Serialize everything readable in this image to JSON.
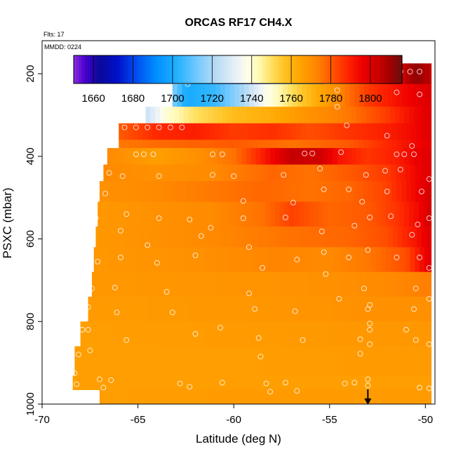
{
  "chart_data": {
    "type": "heatmap",
    "title": "ORCAS RF17 CH4.X",
    "flts_label": "Flts: 17",
    "mmdd_label": "MMDD: 0224",
    "xlabel": "Latitude (deg N)",
    "ylabel": "PSXC (mbar)",
    "xlim": [
      -70,
      -49.5
    ],
    "ylim": [
      1000,
      120
    ],
    "x_ticks": [
      -70,
      -65,
      -60,
      -55,
      -50
    ],
    "x_tick_labels": [
      "-70",
      "-65",
      "-60",
      "-55",
      "-50"
    ],
    "y_ticks": [
      200,
      400,
      600,
      800,
      1000
    ],
    "y_tick_labels": [
      "200",
      "400",
      "600",
      "800",
      "1000"
    ],
    "colorbar": {
      "range": [
        1650,
        1816
      ],
      "ticks": [
        1660,
        1680,
        1700,
        1720,
        1740,
        1760,
        1780,
        1800
      ],
      "tick_labels": [
        "1660",
        "1680",
        "1700",
        "1720",
        "1740",
        "1760",
        "1780",
        "1800"
      ]
    },
    "marker_latitude": -53,
    "bands": [
      {
        "p": [
          175,
          225
        ],
        "lon": -62.3,
        "lat": -49.7,
        "stops": [
          [
            -62.3,
            1700
          ],
          [
            -60.5,
            1680
          ],
          [
            -59.3,
            1660
          ],
          [
            -58.5,
            1680
          ],
          [
            -57.0,
            1690
          ],
          [
            -55.5,
            1700
          ],
          [
            -55.0,
            1745
          ],
          [
            -53.5,
            1770
          ],
          [
            -52.5,
            1790
          ],
          [
            -51.5,
            1800
          ],
          [
            -50.5,
            1812
          ],
          [
            -49.7,
            1805
          ]
        ]
      },
      {
        "p": [
          225,
          280
        ],
        "lon": -63.2,
        "lat": -49.7,
        "stops": [
          [
            -63.2,
            1715
          ],
          [
            -62.5,
            1700
          ],
          [
            -61.0,
            1705
          ],
          [
            -59.5,
            1720
          ],
          [
            -58.5,
            1735
          ],
          [
            -57.5,
            1745
          ],
          [
            -56.5,
            1755
          ],
          [
            -55.0,
            1768
          ],
          [
            -53.0,
            1785
          ],
          [
            -51.0,
            1795
          ],
          [
            -49.7,
            1800
          ]
        ]
      },
      {
        "p": [
          280,
          320
        ],
        "lon": -64.6,
        "lat": -49.7,
        "stops": [
          [
            -64.6,
            1725
          ],
          [
            -63.5,
            1740
          ],
          [
            -62.0,
            1750
          ],
          [
            -60.0,
            1758
          ],
          [
            -58.0,
            1762
          ],
          [
            -56.0,
            1770
          ],
          [
            -54.0,
            1775
          ],
          [
            -52.0,
            1785
          ],
          [
            -50.5,
            1795
          ],
          [
            -49.7,
            1800
          ]
        ]
      },
      {
        "p": [
          320,
          360
        ],
        "lon": -66.0,
        "lat": -49.7,
        "stops": [
          [
            -66.0,
            1780
          ],
          [
            -64.0,
            1788
          ],
          [
            -62.0,
            1790
          ],
          [
            -60.0,
            1785
          ],
          [
            -58.0,
            1787
          ],
          [
            -56.0,
            1782
          ],
          [
            -54.0,
            1786
          ],
          [
            -52.0,
            1790
          ],
          [
            -50.5,
            1795
          ],
          [
            -49.7,
            1800
          ]
        ]
      },
      {
        "p": [
          360,
          380
        ],
        "lon": -66.0,
        "lat": -49.7,
        "stops": [
          [
            -66.0,
            1775
          ],
          [
            -63.0,
            1778
          ],
          [
            -60.0,
            1780
          ],
          [
            -57.0,
            1776
          ],
          [
            -54.0,
            1780
          ],
          [
            -52.0,
            1788
          ],
          [
            -49.7,
            1798
          ]
        ]
      },
      {
        "p": [
          380,
          420
        ],
        "lon": -66.6,
        "lat": -49.7,
        "stops": [
          [
            -66.6,
            1772
          ],
          [
            -64.0,
            1766
          ],
          [
            -62.0,
            1770
          ],
          [
            -60.0,
            1776
          ],
          [
            -59.0,
            1785
          ],
          [
            -58.0,
            1795
          ],
          [
            -57.0,
            1805
          ],
          [
            -55.5,
            1803
          ],
          [
            -54.5,
            1792
          ],
          [
            -53.0,
            1786
          ],
          [
            -51.5,
            1790
          ],
          [
            -50.5,
            1796
          ],
          [
            -49.7,
            1800
          ]
        ]
      },
      {
        "p": [
          420,
          460
        ],
        "lon": -66.8,
        "lat": -49.7,
        "stops": [
          [
            -66.8,
            1772
          ],
          [
            -64.0,
            1770
          ],
          [
            -61.0,
            1772
          ],
          [
            -58.0,
            1778
          ],
          [
            -56.0,
            1776
          ],
          [
            -54.0,
            1780
          ],
          [
            -52.0,
            1785
          ],
          [
            -50.5,
            1795
          ],
          [
            -49.7,
            1800
          ]
        ]
      },
      {
        "p": [
          460,
          510
        ],
        "lon": -67.0,
        "lat": -49.7,
        "stops": [
          [
            -67.0,
            1770
          ],
          [
            -64.0,
            1772
          ],
          [
            -61.0,
            1775
          ],
          [
            -58.5,
            1778
          ],
          [
            -56.0,
            1776
          ],
          [
            -54.0,
            1778
          ],
          [
            -52.0,
            1784
          ],
          [
            -50.5,
            1795
          ],
          [
            -49.7,
            1802
          ]
        ]
      },
      {
        "p": [
          510,
          570
        ],
        "lon": -67.1,
        "lat": -49.7,
        "stops": [
          [
            -67.1,
            1768
          ],
          [
            -64.0,
            1770
          ],
          [
            -61.0,
            1772
          ],
          [
            -58.5,
            1776
          ],
          [
            -57.0,
            1784
          ],
          [
            -55.0,
            1778
          ],
          [
            -53.0,
            1780
          ],
          [
            -51.5,
            1786
          ],
          [
            -50.3,
            1795
          ],
          [
            -49.7,
            1803
          ]
        ]
      },
      {
        "p": [
          570,
          620
        ],
        "lon": -67.2,
        "lat": -49.7,
        "stops": [
          [
            -67.2,
            1768
          ],
          [
            -64.0,
            1770
          ],
          [
            -60.0,
            1773
          ],
          [
            -57.0,
            1776
          ],
          [
            -54.0,
            1778
          ],
          [
            -52.0,
            1782
          ],
          [
            -50.5,
            1792
          ],
          [
            -49.7,
            1800
          ]
        ]
      },
      {
        "p": [
          620,
          680
        ],
        "lon": -67.3,
        "lat": -49.7,
        "stops": [
          [
            -67.3,
            1768
          ],
          [
            -62.0,
            1770
          ],
          [
            -58.0,
            1773
          ],
          [
            -55.0,
            1772
          ],
          [
            -53.0,
            1775
          ],
          [
            -51.0,
            1782
          ],
          [
            -50.0,
            1796
          ],
          [
            -49.7,
            1800
          ]
        ]
      },
      {
        "p": [
          680,
          740
        ],
        "lon": -67.4,
        "lat": -49.7,
        "stops": [
          [
            -67.4,
            1768
          ],
          [
            -60.0,
            1769
          ],
          [
            -55.0,
            1770
          ],
          [
            -52.0,
            1772
          ],
          [
            -49.7,
            1774
          ]
        ]
      },
      {
        "p": [
          740,
          800
        ],
        "lon": -67.6,
        "lat": -49.7,
        "stops": [
          [
            -67.6,
            1767
          ],
          [
            -60.0,
            1768
          ],
          [
            -53.0,
            1770
          ],
          [
            -49.7,
            1770
          ]
        ]
      },
      {
        "p": [
          800,
          860
        ],
        "lon": -68.0,
        "lat": -49.7,
        "stops": [
          [
            -68.0,
            1766
          ],
          [
            -60.0,
            1767
          ],
          [
            -53.0,
            1768
          ],
          [
            -49.7,
            1768
          ]
        ]
      },
      {
        "p": [
          860,
          930
        ],
        "lon": -68.3,
        "lat": -49.7,
        "stops": [
          [
            -68.3,
            1766
          ],
          [
            -60.0,
            1766
          ],
          [
            -53.0,
            1767
          ],
          [
            -49.7,
            1767
          ]
        ]
      },
      {
        "p": [
          930,
          965
        ],
        "lon": -68.4,
        "lat": -49.7,
        "stops": [
          [
            -68.4,
            1766
          ],
          [
            -60.0,
            1766
          ],
          [
            -49.7,
            1766
          ]
        ]
      },
      {
        "p": [
          965,
          1000
        ],
        "lon": -67.0,
        "lat": -49.7,
        "stops": [
          [
            -67.0,
            1766
          ],
          [
            -60.0,
            1767
          ],
          [
            -49.7,
            1767
          ]
        ]
      }
    ],
    "obs_points": [
      [
        -62.1,
        185
      ],
      [
        -61.6,
        185
      ],
      [
        -61.1,
        185
      ],
      [
        -60.6,
        185
      ],
      [
        -60.1,
        185
      ],
      [
        -59.6,
        185
      ],
      [
        -59.1,
        185
      ],
      [
        -58.6,
        185
      ],
      [
        -58.1,
        185
      ],
      [
        -57.6,
        185
      ],
      [
        -57.1,
        185
      ],
      [
        -56.6,
        185
      ],
      [
        -56.1,
        185
      ],
      [
        -55.5,
        185
      ],
      [
        -51.8,
        195
      ],
      [
        -51.3,
        195
      ],
      [
        -50.8,
        195
      ],
      [
        -50.3,
        195
      ],
      [
        -62.4,
        225
      ],
      [
        -54.6,
        240
      ],
      [
        -51.5,
        245
      ],
      [
        -50.3,
        250
      ],
      [
        -54.6,
        280
      ],
      [
        -65.7,
        330
      ],
      [
        -65.1,
        330
      ],
      [
        -64.5,
        330
      ],
      [
        -63.9,
        330
      ],
      [
        -63.3,
        330
      ],
      [
        -62.7,
        330
      ],
      [
        -54.1,
        325
      ],
      [
        -52.0,
        350
      ],
      [
        -50.7,
        375
      ],
      [
        -65.1,
        395
      ],
      [
        -64.7,
        395
      ],
      [
        -64.2,
        395
      ],
      [
        -61.1,
        395
      ],
      [
        -60.6,
        395
      ],
      [
        -56.3,
        393
      ],
      [
        -55.9,
        393
      ],
      [
        -54.4,
        390
      ],
      [
        -51.5,
        395
      ],
      [
        -51.1,
        395
      ],
      [
        -50.6,
        395
      ],
      [
        -66.5,
        440
      ],
      [
        -65.8,
        448
      ],
      [
        -63.9,
        448
      ],
      [
        -61.1,
        445
      ],
      [
        -60.0,
        448
      ],
      [
        -57.4,
        445
      ],
      [
        -55.5,
        430
      ],
      [
        -53.1,
        445
      ],
      [
        -52.1,
        435
      ],
      [
        -51.3,
        432
      ],
      [
        -49.8,
        455
      ],
      [
        -66.7,
        490
      ],
      [
        -59.5,
        508
      ],
      [
        -56.9,
        512
      ],
      [
        -55.3,
        480
      ],
      [
        -54.0,
        480
      ],
      [
        -53.3,
        510
      ],
      [
        -52.0,
        485
      ],
      [
        -50.2,
        485
      ],
      [
        -67.2,
        550
      ],
      [
        -65.6,
        540
      ],
      [
        -63.9,
        550
      ],
      [
        -62.3,
        553
      ],
      [
        -61.2,
        573
      ],
      [
        -59.5,
        550
      ],
      [
        -57.3,
        548
      ],
      [
        -55.4,
        582
      ],
      [
        -53.7,
        568
      ],
      [
        -52.9,
        548
      ],
      [
        -51.8,
        545
      ],
      [
        -50.4,
        565
      ],
      [
        -49.8,
        550
      ],
      [
        -65.9,
        580
      ],
      [
        -61.7,
        593
      ],
      [
        -64.5,
        615
      ],
      [
        -64.0,
        658
      ],
      [
        -62.0,
        640
      ],
      [
        -59.2,
        620
      ],
      [
        -56.7,
        650
      ],
      [
        -55.3,
        632
      ],
      [
        -54.0,
        645
      ],
      [
        -53.0,
        627
      ],
      [
        -51.5,
        645
      ],
      [
        -50.7,
        590
      ],
      [
        -50.3,
        645
      ],
      [
        -49.8,
        670
      ],
      [
        -67.1,
        655
      ],
      [
        -65.9,
        645
      ],
      [
        -58.5,
        670
      ],
      [
        -55.2,
        685
      ],
      [
        -63.5,
        728
      ],
      [
        -67.4,
        720
      ],
      [
        -66.2,
        718
      ],
      [
        -59.2,
        732
      ],
      [
        -53.2,
        720
      ],
      [
        -50.5,
        720
      ],
      [
        -49.8,
        745
      ],
      [
        -67.6,
        765
      ],
      [
        -66.1,
        778
      ],
      [
        -63.2,
        778
      ],
      [
        -58.9,
        770
      ],
      [
        -56.8,
        775
      ],
      [
        -54.5,
        745
      ],
      [
        -53.0,
        770
      ],
      [
        -52.9,
        760
      ],
      [
        -50.6,
        770
      ],
      [
        -67.9,
        820
      ],
      [
        -67.6,
        820
      ],
      [
        -62.0,
        830
      ],
      [
        -58.7,
        840
      ],
      [
        -56.4,
        845
      ],
      [
        -52.9,
        805
      ],
      [
        -52.9,
        820
      ],
      [
        -53.4,
        843
      ],
      [
        -51.0,
        820
      ],
      [
        -50.5,
        845
      ],
      [
        -49.8,
        855
      ],
      [
        -68.1,
        880
      ],
      [
        -67.5,
        870
      ],
      [
        -65.6,
        845
      ],
      [
        -60.7,
        815
      ],
      [
        -58.6,
        885
      ],
      [
        -53.4,
        878
      ],
      [
        -52.9,
        855
      ],
      [
        -68.3,
        925
      ],
      [
        -68.2,
        952
      ],
      [
        -67.0,
        940
      ],
      [
        -66.4,
        942
      ],
      [
        -66.8,
        960
      ],
      [
        -62.8,
        950
      ],
      [
        -62.3,
        958
      ],
      [
        -60.6,
        948
      ],
      [
        -58.3,
        950
      ],
      [
        -57.3,
        948
      ],
      [
        -56.7,
        968
      ],
      [
        -54.2,
        950
      ],
      [
        -53.7,
        948
      ],
      [
        -53.0,
        940
      ],
      [
        -53.0,
        955
      ],
      [
        -50.3,
        960
      ],
      [
        -49.8,
        962
      ],
      [
        -58.1,
        970
      ]
    ]
  }
}
